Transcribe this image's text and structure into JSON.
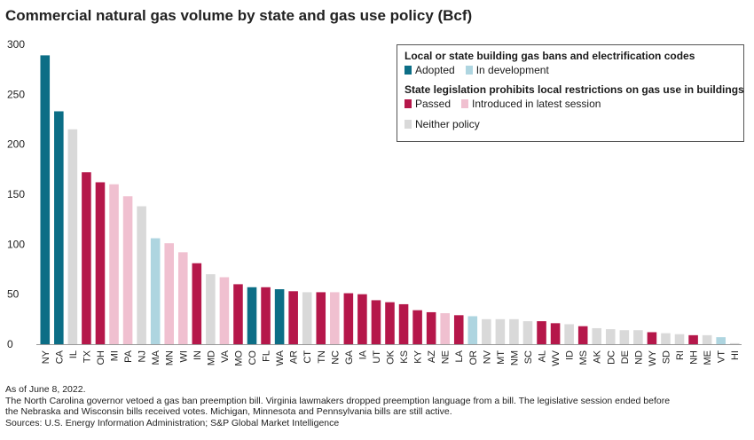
{
  "title": "Commercial natural gas volume by state and gas use policy (Bcf)",
  "legend": {
    "group1_title": "Local or state building gas bans and electrification codes",
    "adopted": "Adopted",
    "in_development": "In development",
    "group2_title": "State legislation prohibits local restrictions on gas use in buildings",
    "passed": "Passed",
    "introduced": "Introduced in latest session",
    "neither": "Neither policy"
  },
  "colors": {
    "adopted": "#0c6e86",
    "in_development": "#aed5e0",
    "passed": "#b5174a",
    "introduced": "#f0c0d0",
    "neither": "#d9d9d9"
  },
  "footnotes": [
    "As of June 8, 2022.",
    "The North Carolina governor vetoed a gas ban preemption bill. Virginia lawmakers dropped preemption language from a bill. The legislative session ended before",
    "the Nebraska and Wisconsin bills received votes. Michigan, Minnesota and Pennsylvania bills are still active.",
    "Sources: U.S. Energy Information Administration; S&P Global Market Intelligence"
  ],
  "chart_data": {
    "type": "bar",
    "title": "Commercial natural gas volume by state and gas use policy (Bcf)",
    "xlabel": "",
    "ylabel": "",
    "ylim": [
      0,
      300
    ],
    "yticks": [
      0,
      50,
      100,
      150,
      200,
      250,
      300
    ],
    "categories": [
      "NY",
      "CA",
      "IL",
      "TX",
      "OH",
      "MI",
      "PA",
      "NJ",
      "MA",
      "MN",
      "WI",
      "IN",
      "MD",
      "VA",
      "MO",
      "CO",
      "FL",
      "WA",
      "AR",
      "CT",
      "TN",
      "NC",
      "GA",
      "IA",
      "UT",
      "OK",
      "KS",
      "KY",
      "AZ",
      "NE",
      "LA",
      "OR",
      "NV",
      "MT",
      "NM",
      "SC",
      "AL",
      "WV",
      "ID",
      "MS",
      "AK",
      "DC",
      "DE",
      "ND",
      "WY",
      "SD",
      "RI",
      "NH",
      "ME",
      "VT",
      "HI"
    ],
    "values": [
      289,
      233,
      215,
      172,
      162,
      160,
      148,
      138,
      106,
      101,
      92,
      81,
      70,
      67,
      60,
      57,
      57,
      55,
      53,
      52,
      52,
      52,
      51,
      50,
      44,
      42,
      40,
      34,
      32,
      31,
      29,
      28,
      25,
      25,
      25,
      23,
      23,
      21,
      20,
      18,
      16,
      15,
      14,
      14,
      12,
      11,
      10,
      9,
      9,
      7,
      1
    ],
    "policy": [
      "adopted",
      "adopted",
      "neither",
      "passed",
      "passed",
      "introduced",
      "introduced",
      "neither",
      "in_development",
      "introduced",
      "introduced",
      "passed",
      "neither",
      "introduced",
      "passed",
      "adopted",
      "passed",
      "adopted",
      "passed",
      "neither",
      "passed",
      "introduced",
      "passed",
      "passed",
      "passed",
      "passed",
      "passed",
      "passed",
      "passed",
      "introduced",
      "passed",
      "in_development",
      "neither",
      "neither",
      "neither",
      "neither",
      "passed",
      "passed",
      "neither",
      "passed",
      "neither",
      "neither",
      "neither",
      "neither",
      "passed",
      "neither",
      "neither",
      "passed",
      "neither",
      "in_development",
      "neither"
    ]
  }
}
